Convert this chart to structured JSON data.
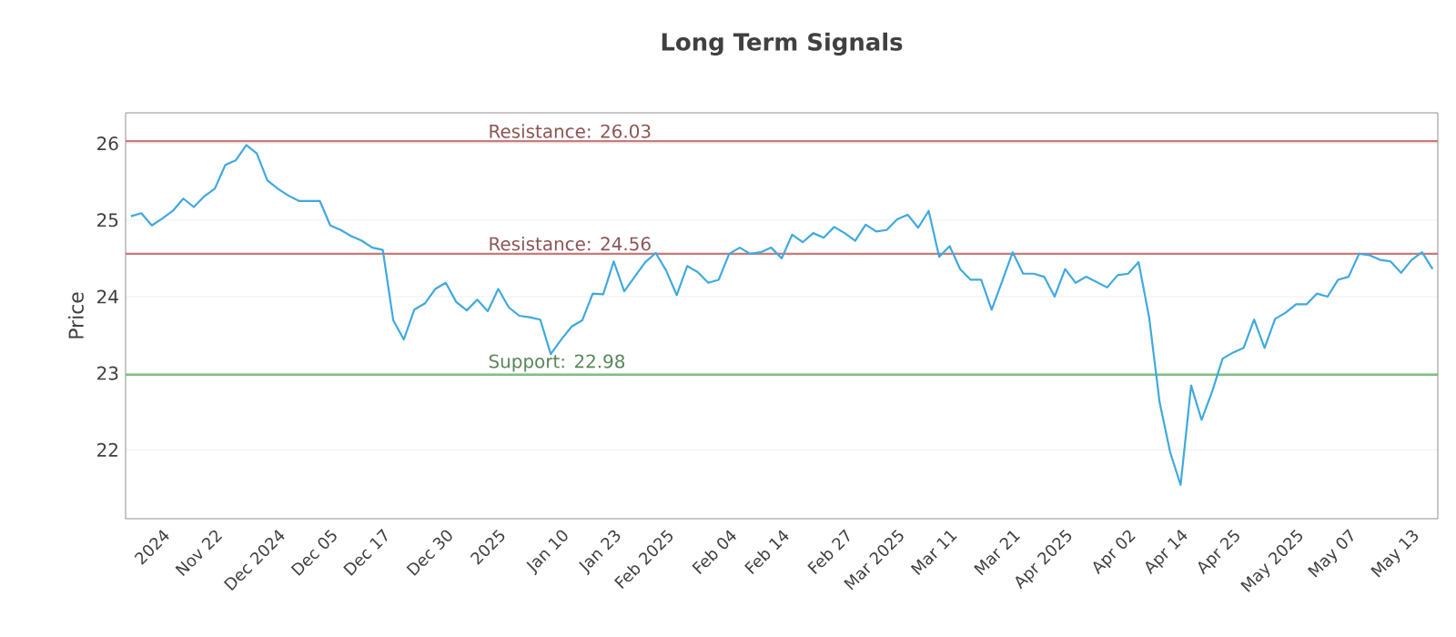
{
  "chart_data": {
    "type": "line",
    "title": "Long Term Signals",
    "ylabel": "Price",
    "categories": [
      null,
      null,
      null,
      "2024",
      null,
      null,
      null,
      null,
      "Nov 22",
      null,
      null,
      null,
      null,
      null,
      "Dec 2024",
      null,
      null,
      null,
      null,
      "Dec 05",
      null,
      null,
      null,
      null,
      "Dec 17",
      null,
      null,
      null,
      null,
      null,
      "Dec 30",
      null,
      null,
      null,
      null,
      "2025",
      null,
      null,
      null,
      null,
      null,
      "Jan 10",
      null,
      null,
      null,
      null,
      "Jan 23",
      null,
      null,
      null,
      null,
      "Feb 2025",
      null,
      null,
      null,
      null,
      null,
      "Feb 04",
      null,
      null,
      null,
      null,
      "Feb 14",
      null,
      null,
      null,
      null,
      null,
      "Feb 27",
      null,
      null,
      null,
      null,
      "Mar 2025",
      null,
      null,
      null,
      null,
      "Mar 11",
      null,
      null,
      null,
      null,
      null,
      "Mar 21",
      null,
      null,
      null,
      null,
      "Apr 2025",
      null,
      null,
      null,
      null,
      null,
      "Apr 02",
      null,
      null,
      null,
      null,
      "Apr 14",
      null,
      null,
      null,
      null,
      "Apr 25",
      null,
      null,
      null,
      null,
      null,
      "May 2025",
      null,
      null,
      null,
      null,
      "May 07",
      null,
      null,
      null,
      null,
      null,
      "May 13",
      null,
      null
    ],
    "series": [
      {
        "color": "#3fa9e0",
        "values": [
          25.05,
          25.09,
          24.93,
          25.02,
          25.12,
          25.28,
          25.17,
          25.31,
          25.41,
          25.72,
          25.78,
          25.98,
          25.87,
          25.52,
          25.41,
          25.32,
          25.25,
          25.25,
          25.25,
          24.93,
          24.87,
          24.79,
          24.73,
          24.64,
          24.61,
          23.69,
          23.44,
          23.83,
          23.91,
          24.1,
          24.18,
          23.93,
          23.82,
          23.96,
          23.81,
          24.1,
          23.86,
          23.75,
          23.73,
          23.7,
          23.25,
          23.44,
          23.61,
          23.69,
          24.04,
          24.03,
          24.46,
          24.07,
          24.26,
          24.45,
          24.57,
          24.34,
          24.02,
          24.4,
          24.32,
          24.18,
          24.22,
          24.56,
          24.64,
          24.56,
          24.58,
          24.64,
          24.5,
          24.81,
          24.71,
          24.83,
          24.77,
          24.91,
          24.83,
          24.73,
          24.94,
          24.85,
          24.87,
          25.01,
          25.07,
          24.9,
          25.12,
          24.52,
          24.66,
          24.36,
          24.22,
          24.22,
          23.83,
          24.2,
          24.58,
          24.3,
          24.3,
          24.26,
          24.0,
          24.36,
          24.18,
          24.26,
          24.19,
          24.12,
          24.28,
          24.3,
          24.45,
          23.73,
          22.62,
          21.97,
          21.54,
          22.84,
          22.39,
          22.76,
          23.19,
          23.27,
          23.33,
          23.7,
          23.33,
          23.71,
          23.79,
          23.9,
          23.9,
          24.04,
          24.0,
          24.22,
          24.26,
          24.56,
          24.54,
          24.48,
          24.46,
          24.31,
          24.48,
          24.58,
          24.36
        ]
      }
    ],
    "ylim": [
      21.1,
      26.4
    ],
    "yticks": [
      22,
      23,
      24,
      25,
      26
    ],
    "grid": "y",
    "marker": "none",
    "line_style": "solid",
    "ref_lines": [
      {
        "axis": "y",
        "value": 26.03,
        "label": "Resistance: 26.03",
        "color": "#c87a7a"
      },
      {
        "axis": "y",
        "value": 24.56,
        "label": "Resistance: 24.56",
        "color": "#c87a7a"
      },
      {
        "axis": "y",
        "value": 22.98,
        "label": "Support: 22.98",
        "color": "#7fbf7f"
      }
    ]
  }
}
